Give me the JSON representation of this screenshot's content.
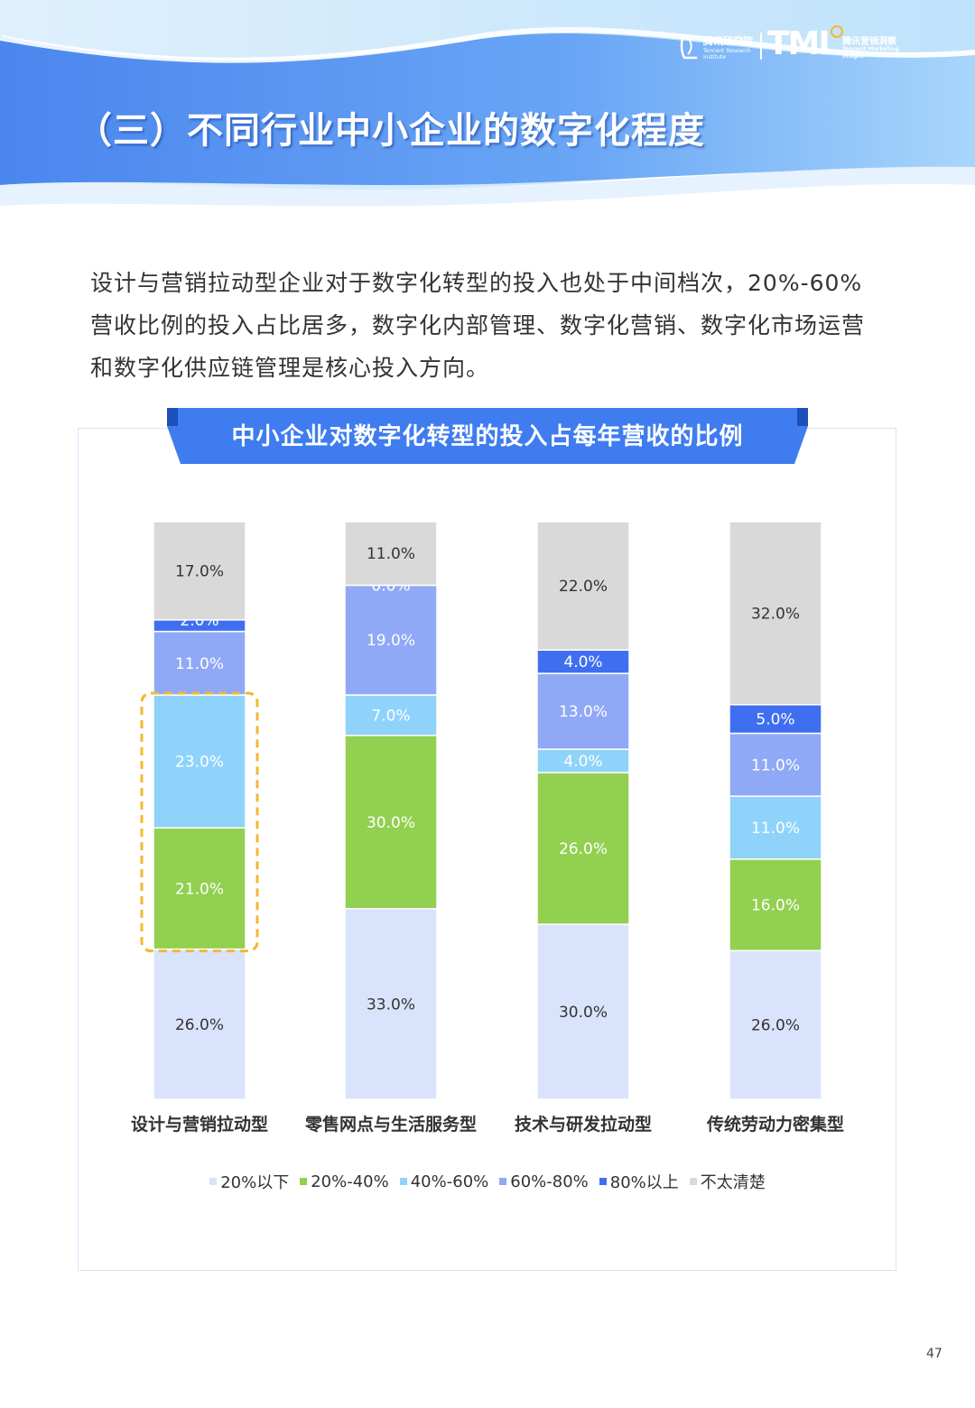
{
  "section_title": "（三）不同行业中小企业的数字化程度",
  "header_logos": {
    "tencent_research_cn": "腾讯研究院",
    "tencent_research_en": "Tencent Research Institute",
    "tmi_mark": "TMI",
    "tmi_cn": "腾讯营销洞察",
    "tmi_en": "Tencent Marketing Insight"
  },
  "body_paragraph": "设计与营销拉动型企业对于数字化转型的投入也处于中间档次，20%-60%营收比例的投入占比居多，数字化内部管理、数字化营销、数字化市场运营和数字化供应链管理是核心投入方向。",
  "page_number": "47",
  "colors": {
    "banner_blue": "#5b96f0",
    "title_banner": "#3f7cf0",
    "highlight_border": "#f5b731"
  },
  "chart_data": {
    "type": "bar",
    "stacked": true,
    "title": "中小企业对数字化转型的投入占每年营收的比例",
    "categories": [
      "设计与营销拉动型",
      "零售网点与生活服务型",
      "技术与研发拉动型",
      "传统劳动力密集型"
    ],
    "series": [
      {
        "name": "20%以下",
        "color": "#dae3fc",
        "label_color": "#333333",
        "values": [
          26.0,
          33.0,
          30.0,
          26.0
        ]
      },
      {
        "name": "20%-40%",
        "color": "#92d050",
        "label_color": "#ffffff",
        "values": [
          21.0,
          30.0,
          26.0,
          16.0
        ]
      },
      {
        "name": "40%-60%",
        "color": "#8fd3fb",
        "label_color": "#ffffff",
        "values": [
          23.0,
          7.0,
          4.0,
          11.0
        ]
      },
      {
        "name": "60%-80%",
        "color": "#90a9f6",
        "label_color": "#ffffff",
        "values": [
          11.0,
          19.0,
          13.0,
          11.0
        ]
      },
      {
        "name": "80%以上",
        "color": "#3f6ff0",
        "label_color": "#ffffff",
        "values": [
          2.0,
          0.0,
          4.0,
          5.0
        ]
      },
      {
        "name": "不太清楚",
        "color": "#d9d9d9",
        "label_color": "#333333",
        "values": [
          17.0,
          11.0,
          22.0,
          32.0
        ]
      }
    ],
    "value_labels": [
      [
        "26.0%",
        "21.0%",
        "23.0%",
        "11.0%",
        "2.0%",
        "17.0%"
      ],
      [
        "33.0%",
        "30.0%",
        "7.0%",
        "19.0%",
        "0.0%",
        "11.0%"
      ],
      [
        "30.0%",
        "26.0%",
        "4.0%",
        "13.0%",
        "4.0%",
        "22.0%"
      ],
      [
        "26.0%",
        "16.0%",
        "11.0%",
        "11.0%",
        "5.0%",
        "32.0%"
      ]
    ],
    "highlight": {
      "category": "设计与营销拉动型",
      "series": [
        "20%-40%",
        "40%-60%"
      ],
      "style": "dashed orange box"
    },
    "legend_position": "bottom",
    "grid": false,
    "ylim": [
      0,
      100
    ]
  }
}
